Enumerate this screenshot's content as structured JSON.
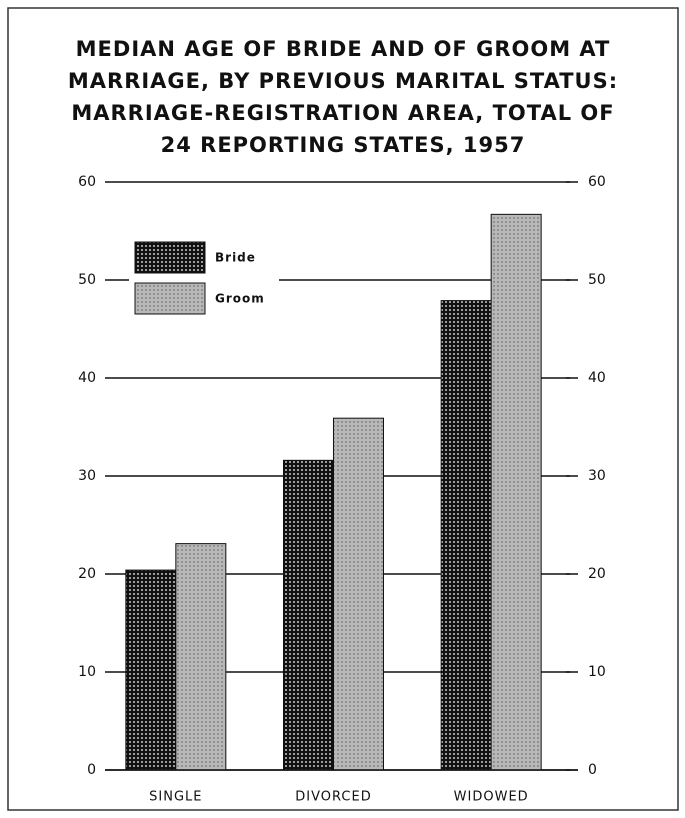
{
  "chart_data": {
    "type": "bar",
    "title": [
      "MEDIAN AGE OF BRIDE AND OF GROOM AT",
      "MARRIAGE, BY PREVIOUS MARITAL STATUS:",
      "MARRIAGE-REGISTRATION AREA, TOTAL OF",
      "24 REPORTING STATES, 1957"
    ],
    "categories": [
      "SINGLE",
      "DIVORCED",
      "WIDOWED"
    ],
    "series": [
      {
        "name": "Bride",
        "color": "#111111",
        "values": [
          20.4,
          31.6,
          47.9
        ]
      },
      {
        "name": "Groom",
        "color": "#b8b8b8",
        "values": [
          23.1,
          35.9,
          56.7
        ]
      }
    ],
    "ylim": [
      0,
      60
    ],
    "yticks": [
      0,
      10,
      20,
      30,
      40,
      50,
      60
    ],
    "y2lim": [
      0,
      60
    ],
    "y2ticks": [
      0,
      10,
      20,
      30,
      40,
      50,
      60
    ],
    "grid": true,
    "legend": "upper left"
  }
}
